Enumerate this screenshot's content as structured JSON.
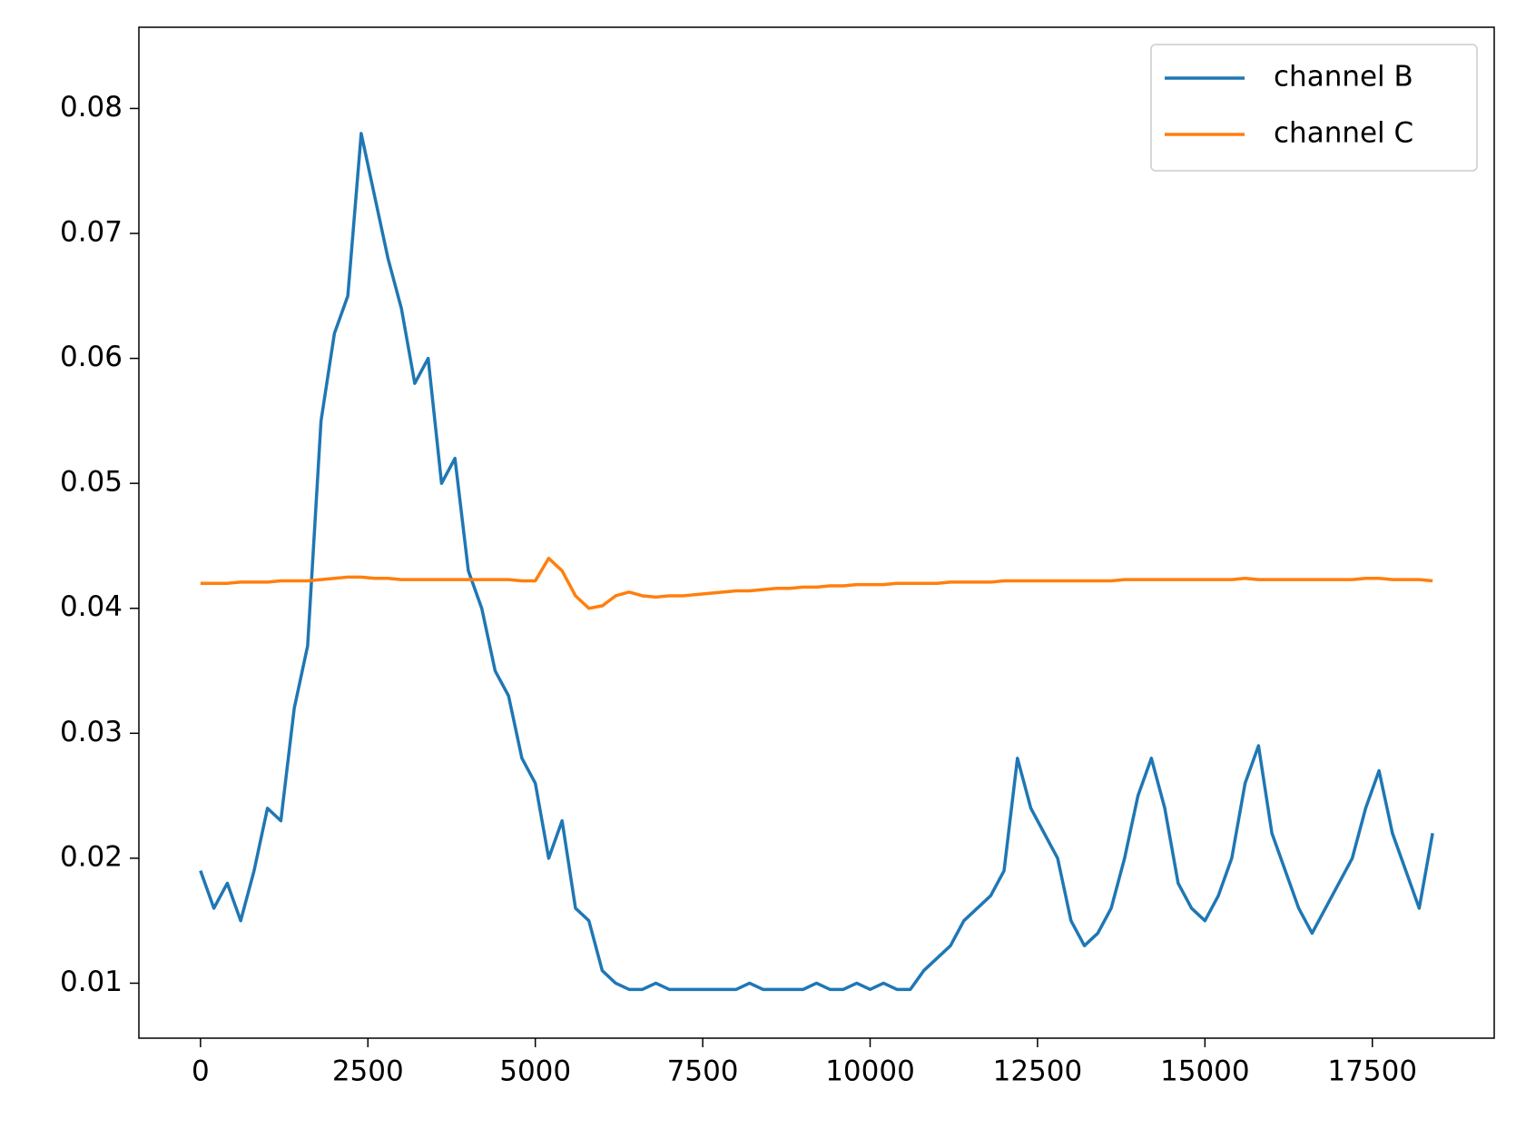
{
  "chart_data": {
    "type": "line",
    "x": [
      0,
      200,
      400,
      600,
      800,
      1000,
      1200,
      1400,
      1600,
      1800,
      2000,
      2200,
      2400,
      2600,
      2800,
      3000,
      3200,
      3400,
      3600,
      3800,
      4000,
      4200,
      4400,
      4600,
      4800,
      5000,
      5200,
      5400,
      5600,
      5800,
      6000,
      6200,
      6400,
      6600,
      6800,
      7000,
      7200,
      7400,
      7600,
      7800,
      8000,
      8200,
      8400,
      8600,
      8800,
      9000,
      9200,
      9400,
      9600,
      9800,
      10000,
      10200,
      10400,
      10600,
      10800,
      11000,
      11200,
      11400,
      11600,
      11800,
      12000,
      12200,
      12400,
      12600,
      12800,
      13000,
      13200,
      13400,
      13600,
      13800,
      14000,
      14200,
      14400,
      14600,
      14800,
      15000,
      15200,
      15400,
      15600,
      15800,
      16000,
      16200,
      16400,
      16600,
      16800,
      17000,
      17200,
      17400,
      17600,
      17800,
      18000,
      18200,
      18400
    ],
    "series": [
      {
        "name": "channel B",
        "color": "#1f77b4",
        "values": [
          0.019,
          0.016,
          0.018,
          0.015,
          0.019,
          0.024,
          0.023,
          0.032,
          0.037,
          0.055,
          0.062,
          0.065,
          0.078,
          0.073,
          0.068,
          0.064,
          0.058,
          0.06,
          0.05,
          0.052,
          0.043,
          0.04,
          0.035,
          0.033,
          0.028,
          0.026,
          0.02,
          0.023,
          0.016,
          0.015,
          0.011,
          0.01,
          0.0095,
          0.0095,
          0.01,
          0.0095,
          0.0095,
          0.0095,
          0.0095,
          0.0095,
          0.0095,
          0.01,
          0.0095,
          0.0095,
          0.0095,
          0.0095,
          0.01,
          0.0095,
          0.0095,
          0.01,
          0.0095,
          0.01,
          0.0095,
          0.0095,
          0.011,
          0.012,
          0.013,
          0.015,
          0.016,
          0.017,
          0.019,
          0.028,
          0.024,
          0.022,
          0.02,
          0.015,
          0.013,
          0.014,
          0.016,
          0.02,
          0.025,
          0.028,
          0.024,
          0.018,
          0.016,
          0.015,
          0.017,
          0.02,
          0.026,
          0.029,
          0.022,
          0.019,
          0.016,
          0.014,
          0.016,
          0.018,
          0.02,
          0.024,
          0.027,
          0.022,
          0.019,
          0.016,
          0.022
        ]
      },
      {
        "name": "channel C",
        "color": "#ff7f0e",
        "values": [
          0.042,
          0.042,
          0.042,
          0.0421,
          0.0421,
          0.0421,
          0.0422,
          0.0422,
          0.0422,
          0.0423,
          0.0424,
          0.0425,
          0.0425,
          0.0424,
          0.0424,
          0.0423,
          0.0423,
          0.0423,
          0.0423,
          0.0423,
          0.0423,
          0.0423,
          0.0423,
          0.0423,
          0.0422,
          0.0422,
          0.044,
          0.043,
          0.041,
          0.04,
          0.0402,
          0.041,
          0.0413,
          0.041,
          0.0409,
          0.041,
          0.041,
          0.0411,
          0.0412,
          0.0413,
          0.0414,
          0.0414,
          0.0415,
          0.0416,
          0.0416,
          0.0417,
          0.0417,
          0.0418,
          0.0418,
          0.0419,
          0.0419,
          0.0419,
          0.042,
          0.042,
          0.042,
          0.042,
          0.0421,
          0.0421,
          0.0421,
          0.0421,
          0.0422,
          0.0422,
          0.0422,
          0.0422,
          0.0422,
          0.0422,
          0.0422,
          0.0422,
          0.0422,
          0.0423,
          0.0423,
          0.0423,
          0.0423,
          0.0423,
          0.0423,
          0.0423,
          0.0423,
          0.0423,
          0.0424,
          0.0423,
          0.0423,
          0.0423,
          0.0423,
          0.0423,
          0.0423,
          0.0423,
          0.0423,
          0.0424,
          0.0424,
          0.0423,
          0.0423,
          0.0423,
          0.0422
        ]
      }
    ],
    "xlim": [
      -920,
      19320
    ],
    "xticks": [
      0,
      2500,
      5000,
      7500,
      10000,
      12500,
      15000,
      17500
    ],
    "ylim": [
      0.0056,
      0.0865
    ],
    "yticks": [
      0.01,
      0.02,
      0.03,
      0.04,
      0.05,
      0.06,
      0.07,
      0.08
    ],
    "legend": "upper right"
  }
}
